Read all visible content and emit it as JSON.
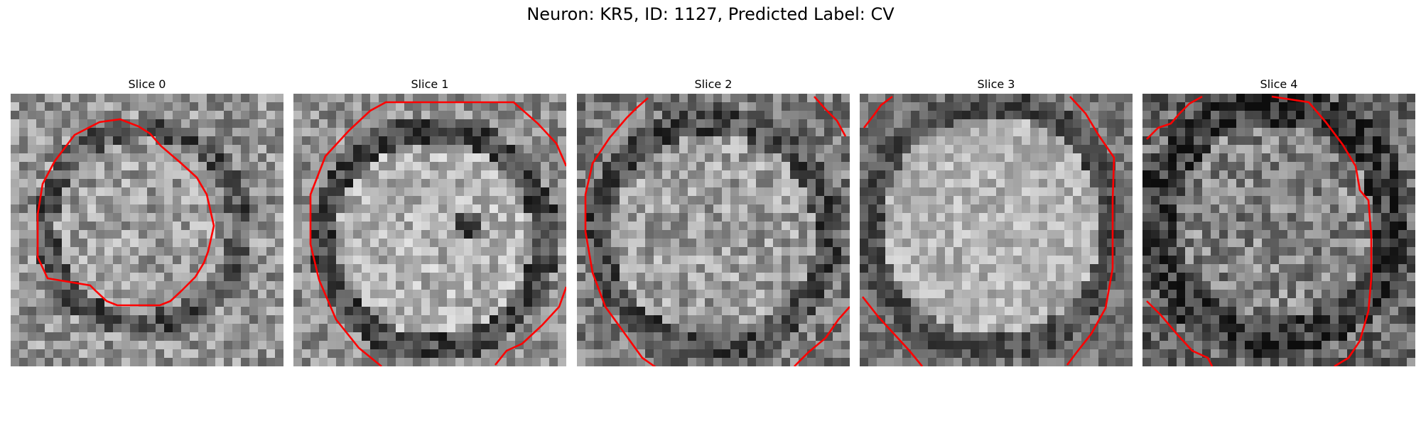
{
  "figure": {
    "title": "Neuron: KR5, ID: 1127, Predicted Label: CV"
  },
  "colors": {
    "contour": "#ff0000",
    "colormap": "gray"
  },
  "panels": [
    {
      "title": "Slice 0"
    },
    {
      "title": "Slice 1"
    },
    {
      "title": "Slice 2"
    },
    {
      "title": "Slice 3"
    },
    {
      "title": "Slice 4"
    }
  ]
}
